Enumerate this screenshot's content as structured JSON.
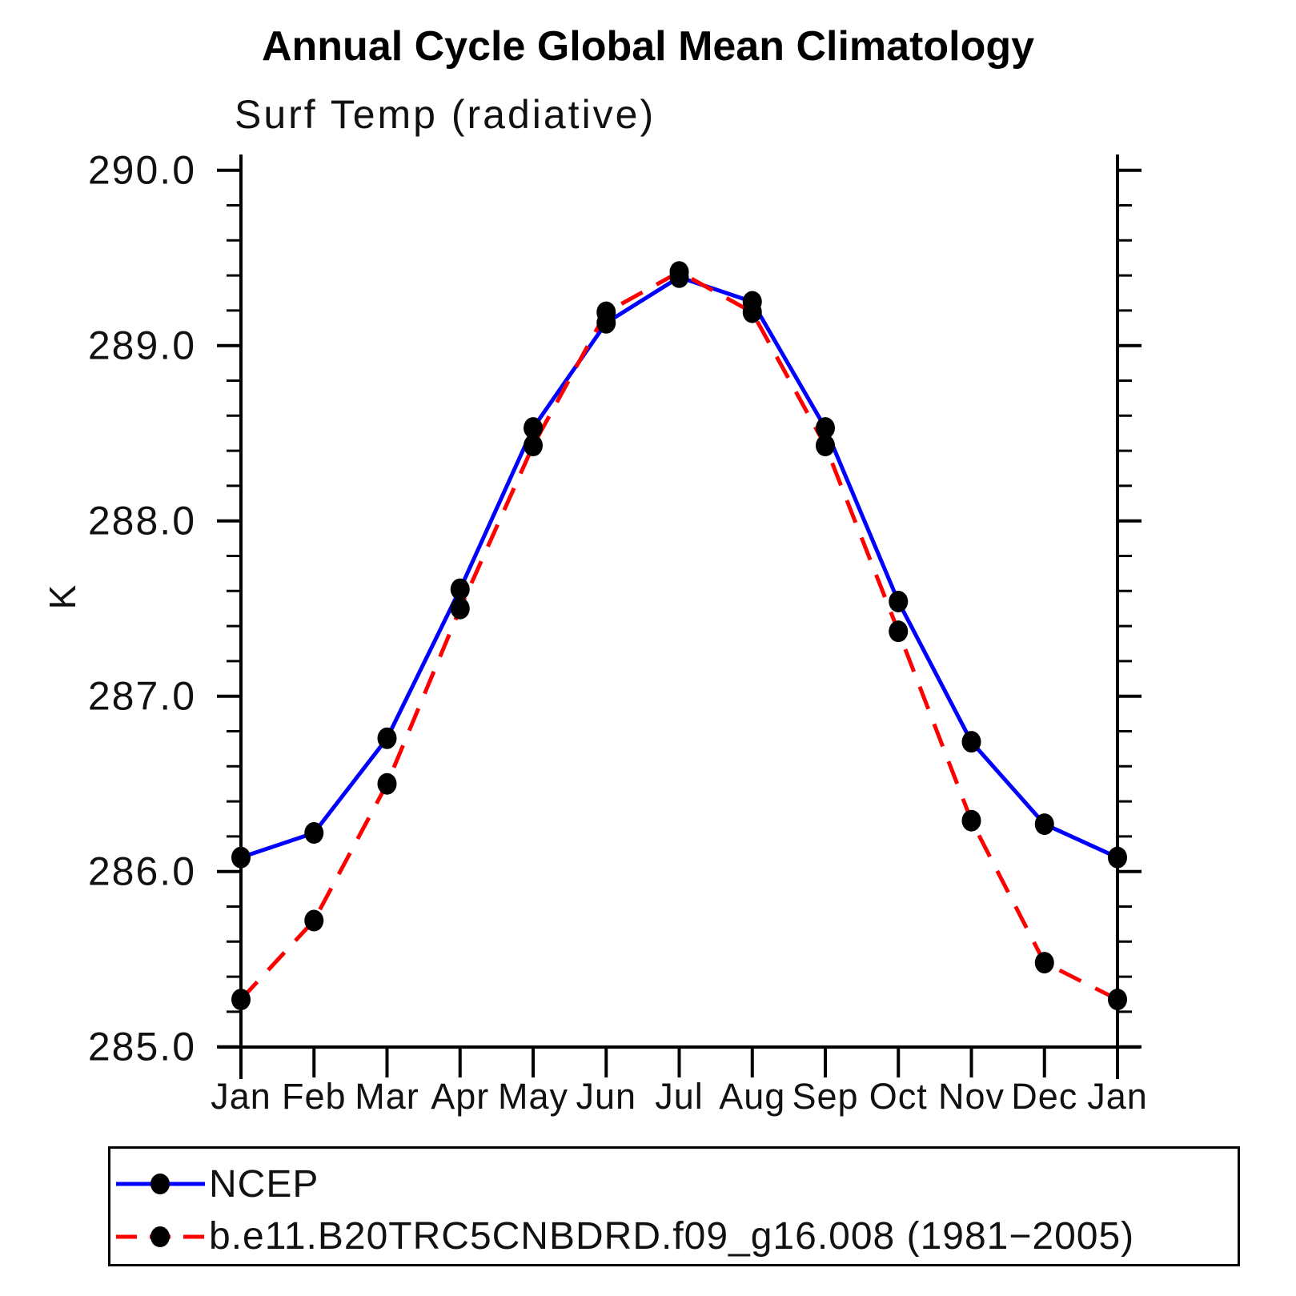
{
  "chart_data": {
    "type": "line",
    "title": "Annual Cycle Global Mean Climatology",
    "subtitle": "Surf Temp (radiative)",
    "ylabel": "K",
    "xlabel": "",
    "categories": [
      "Jan",
      "Feb",
      "Mar",
      "Apr",
      "May",
      "Jun",
      "Jul",
      "Aug",
      "Sep",
      "Oct",
      "Nov",
      "Dec",
      "Jan"
    ],
    "ylim": [
      285.0,
      290.0
    ],
    "yticks_major": [
      285.0,
      286.0,
      287.0,
      288.0,
      289.0,
      290.0
    ],
    "ytick_labels": [
      "285.0",
      "286.0",
      "287.0",
      "288.0",
      "289.0",
      "290.0"
    ],
    "yticks_minor_step": 0.2,
    "grid": false,
    "legend_position": "bottom",
    "marker": "filled-circle",
    "marker_color": "#000000",
    "series": [
      {
        "name": "NCEP",
        "color": "#0000ff",
        "style": "solid",
        "values": [
          286.08,
          286.22,
          286.76,
          287.61,
          288.53,
          289.13,
          289.39,
          289.25,
          288.53,
          287.54,
          286.74,
          286.27,
          286.08
        ]
      },
      {
        "name": "b.e11.B20TRC5CNBDRD.f09_g16.008 (1981−2005)",
        "color": "#ff0000",
        "style": "dashed",
        "values": [
          285.27,
          285.72,
          286.5,
          287.5,
          288.43,
          289.19,
          289.42,
          289.19,
          288.43,
          287.37,
          286.29,
          285.48,
          285.27
        ]
      }
    ]
  }
}
